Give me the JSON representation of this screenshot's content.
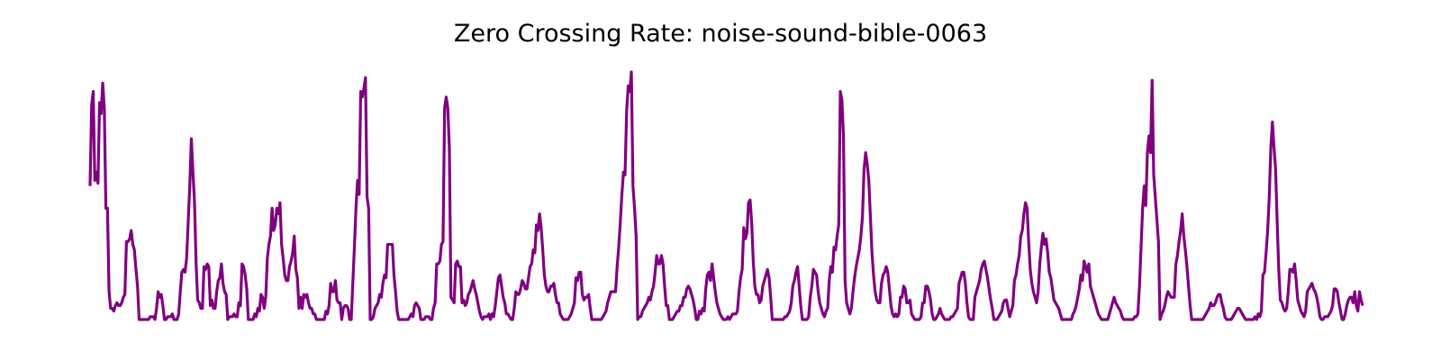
{
  "chart_data": {
    "type": "line",
    "title": "Zero Crossing Rate: noise-sound-bible-0063",
    "xlabel": "",
    "ylabel": "",
    "axes_visible": false,
    "grid": false,
    "line_color": "#800080",
    "values": [
      0.48,
      0.77,
      0.82,
      0.5,
      0.53,
      0.49,
      0.78,
      0.74,
      0.85,
      0.76,
      0.4,
      0.4,
      0.1,
      0.04,
      0.04,
      0.03,
      0.05,
      0.06,
      0.05,
      0.05,
      0.06,
      0.08,
      0.09,
      0.28,
      0.28,
      0.29,
      0.32,
      0.27,
      0.25,
      0.18,
      0.12,
      0.0,
      0.0,
      0.0,
      0.0,
      0.0,
      0.0,
      0.0,
      0.01,
      0.01,
      0.01,
      0.0,
      0.04,
      0.1,
      0.08,
      0.09,
      0.05,
      0.0,
      0.0,
      0.01,
      0.01,
      0.01,
      0.02,
      0.0,
      0.0,
      0.0,
      0.02,
      0.1,
      0.17,
      0.18,
      0.17,
      0.22,
      0.35,
      0.48,
      0.65,
      0.53,
      0.42,
      0.2,
      0.07,
      0.06,
      0.04,
      0.04,
      0.19,
      0.18,
      0.2,
      0.19,
      0.05,
      0.07,
      0.04,
      0.04,
      0.1,
      0.14,
      0.15,
      0.2,
      0.13,
      0.1,
      0.09,
      0.0,
      0.01,
      0.01,
      0.01,
      0.02,
      0.01,
      0.01,
      0.06,
      0.05,
      0.2,
      0.19,
      0.16,
      0.11,
      0.0,
      0.0,
      0.0,
      0.0,
      0.02,
      0.01,
      0.04,
      0.03,
      0.09,
      0.08,
      0.04,
      0.08,
      0.22,
      0.27,
      0.3,
      0.4,
      0.32,
      0.34,
      0.4,
      0.38,
      0.42,
      0.27,
      0.22,
      0.16,
      0.14,
      0.14,
      0.19,
      0.21,
      0.24,
      0.3,
      0.18,
      0.15,
      0.04,
      0.08,
      0.04,
      0.09,
      0.08,
      0.09,
      0.06,
      0.04,
      0.04,
      0.02,
      0.02,
      0.0,
      0.0,
      0.0,
      0.0,
      0.0,
      0.0,
      0.03,
      0.02,
      0.05,
      0.13,
      0.1,
      0.1,
      0.14,
      0.07,
      0.06,
      0.06,
      0.0,
      0.04,
      0.05,
      0.05,
      0.04,
      0.0,
      0.0,
      0.13,
      0.26,
      0.4,
      0.5,
      0.45,
      0.82,
      0.8,
      0.83,
      0.87,
      0.44,
      0.4,
      0.0,
      0.0,
      0.01,
      0.04,
      0.05,
      0.06,
      0.09,
      0.08,
      0.13,
      0.16,
      0.15,
      0.27,
      0.27,
      0.27,
      0.27,
      0.16,
      0.1,
      0.03,
      0.0,
      0.0,
      0.0,
      0.0,
      0.0,
      0.0,
      0.0,
      0.01,
      0.02,
      0.01,
      0.05,
      0.06,
      0.05,
      0.04,
      0.0,
      0.0,
      0.0,
      0.01,
      0.01,
      0.01,
      0.0,
      0.0,
      0.04,
      0.06,
      0.2,
      0.2,
      0.21,
      0.27,
      0.28,
      0.76,
      0.8,
      0.76,
      0.62,
      0.08,
      0.07,
      0.06,
      0.2,
      0.21,
      0.19,
      0.19,
      0.06,
      0.07,
      0.05,
      0.06,
      0.09,
      0.1,
      0.12,
      0.14,
      0.11,
      0.09,
      0.06,
      0.03,
      0.01,
      0.0,
      0.01,
      0.01,
      0.01,
      0.02,
      0.0,
      0.02,
      0.01,
      0.05,
      0.1,
      0.15,
      0.16,
      0.12,
      0.08,
      0.06,
      0.02,
      0.02,
      0.01,
      0.0,
      0.0,
      0.04,
      0.1,
      0.09,
      0.09,
      0.11,
      0.14,
      0.13,
      0.11,
      0.11,
      0.15,
      0.19,
      0.2,
      0.25,
      0.24,
      0.34,
      0.32,
      0.38,
      0.33,
      0.25,
      0.16,
      0.12,
      0.1,
      0.1,
      0.12,
      0.12,
      0.13,
      0.09,
      0.06,
      0.06,
      0.02,
      0.01,
      0.0,
      0.0,
      0.0,
      0.0,
      0.01,
      0.02,
      0.04,
      0.06,
      0.15,
      0.14,
      0.17,
      0.17,
      0.09,
      0.07,
      0.08,
      0.08,
      0.09,
      0.04,
      0.0,
      0.0,
      0.0,
      0.0,
      0.0,
      0.0,
      0.0,
      0.01,
      0.02,
      0.03,
      0.06,
      0.08,
      0.1,
      0.1,
      0.1,
      0.1,
      0.19,
      0.26,
      0.35,
      0.45,
      0.53,
      0.52,
      0.75,
      0.84,
      0.82,
      0.89,
      0.48,
      0.4,
      0.3,
      0.0,
      0.01,
      0.01,
      0.03,
      0.04,
      0.05,
      0.06,
      0.08,
      0.07,
      0.1,
      0.12,
      0.17,
      0.23,
      0.2,
      0.2,
      0.23,
      0.2,
      0.12,
      0.05,
      0.05,
      0.0,
      0.0,
      0.0,
      0.01,
      0.02,
      0.03,
      0.03,
      0.05,
      0.05,
      0.08,
      0.08,
      0.11,
      0.12,
      0.11,
      0.09,
      0.07,
      0.04,
      0.0,
      0.0,
      0.03,
      0.02,
      0.04,
      0.03,
      0.11,
      0.16,
      0.17,
      0.14,
      0.2,
      0.15,
      0.1,
      0.06,
      0.04,
      0.02,
      0.01,
      0.0,
      0.0,
      0.0,
      0.01,
      0.0,
      0.01,
      0.02,
      0.02,
      0.02,
      0.03,
      0.1,
      0.15,
      0.18,
      0.33,
      0.29,
      0.31,
      0.42,
      0.43,
      0.35,
      0.21,
      0.12,
      0.09,
      0.09,
      0.06,
      0.07,
      0.12,
      0.14,
      0.16,
      0.18,
      0.15,
      0.08,
      0.0,
      0.0,
      0.0,
      0.0,
      0.0,
      0.0,
      0.0,
      0.0,
      0.01,
      0.01,
      0.02,
      0.03,
      0.06,
      0.12,
      0.14,
      0.17,
      0.19,
      0.12,
      0.05,
      0.0,
      0.0,
      0.0,
      0.0,
      0.01,
      0.08,
      0.12,
      0.18,
      0.17,
      0.16,
      0.1,
      0.06,
      0.04,
      0.02,
      0.01,
      0.03,
      0.04,
      0.14,
      0.19,
      0.17,
      0.26,
      0.25,
      0.3,
      0.34,
      0.82,
      0.79,
      0.66,
      0.14,
      0.06,
      0.04,
      0.02,
      0.04,
      0.1,
      0.15,
      0.19,
      0.22,
      0.25,
      0.3,
      0.37,
      0.54,
      0.6,
      0.56,
      0.5,
      0.37,
      0.24,
      0.16,
      0.1,
      0.07,
      0.06,
      0.06,
      0.13,
      0.16,
      0.17,
      0.19,
      0.17,
      0.11,
      0.05,
      0.02,
      0.01,
      0.02,
      0.01,
      0.02,
      0.08,
      0.08,
      0.12,
      0.11,
      0.06,
      0.06,
      0.07,
      0.02,
      0.01,
      0.0,
      0.0,
      0.0,
      0.0,
      0.01,
      0.06,
      0.06,
      0.12,
      0.12,
      0.1,
      0.07,
      0.02,
      0.0,
      0.0,
      0.01,
      0.02,
      0.04,
      0.02,
      0.01,
      0.0,
      0.0,
      0.0,
      0.0,
      0.01,
      0.01,
      0.02,
      0.03,
      0.04,
      0.13,
      0.15,
      0.17,
      0.17,
      0.13,
      0.06,
      0.01,
      0.0,
      0.0,
      0.0,
      0.08,
      0.1,
      0.12,
      0.14,
      0.18,
      0.2,
      0.21,
      0.18,
      0.15,
      0.11,
      0.07,
      0.04,
      0.0,
      0.0,
      0.0,
      0.01,
      0.02,
      0.03,
      0.06,
      0.07,
      0.07,
      0.04,
      0.01,
      0.03,
      0.05,
      0.14,
      0.16,
      0.2,
      0.23,
      0.3,
      0.32,
      0.38,
      0.42,
      0.4,
      0.28,
      0.18,
      0.13,
      0.1,
      0.08,
      0.06,
      0.1,
      0.2,
      0.26,
      0.31,
      0.27,
      0.29,
      0.24,
      0.17,
      0.15,
      0.11,
      0.07,
      0.06,
      0.05,
      0.04,
      0.02,
      0.0,
      0.0,
      0.0,
      0.0,
      0.0,
      0.0,
      0.0,
      0.02,
      0.03,
      0.05,
      0.08,
      0.11,
      0.16,
      0.14,
      0.21,
      0.19,
      0.17,
      0.2,
      0.12,
      0.1,
      0.08,
      0.06,
      0.04,
      0.02,
      0.01,
      0.0,
      0.0,
      0.0,
      0.0,
      0.0,
      0.02,
      0.04,
      0.06,
      0.08,
      0.06,
      0.05,
      0.04,
      0.03,
      0.01,
      0.0,
      0.0,
      0.0,
      0.0,
      0.0,
      0.0,
      0.0,
      0.01,
      0.01,
      0.02,
      0.12,
      0.26,
      0.4,
      0.48,
      0.41,
      0.6,
      0.66,
      0.6,
      0.86,
      0.52,
      0.44,
      0.36,
      0.28,
      0.0,
      0.02,
      0.03,
      0.05,
      0.08,
      0.1,
      0.09,
      0.08,
      0.08,
      0.08,
      0.2,
      0.23,
      0.28,
      0.32,
      0.38,
      0.3,
      0.25,
      0.19,
      0.12,
      0.05,
      0.0,
      0.0,
      0.0,
      0.0,
      0.0,
      0.0,
      0.0,
      0.0,
      0.01,
      0.02,
      0.03,
      0.04,
      0.06,
      0.05,
      0.05,
      0.06,
      0.08,
      0.09,
      0.09,
      0.06,
      0.04,
      0.01,
      0.0,
      0.0,
      0.0,
      0.0,
      0.01,
      0.02,
      0.03,
      0.04,
      0.04,
      0.03,
      0.02,
      0.01,
      0.0,
      0.0,
      0.0,
      0.0,
      0.0,
      0.0,
      0.01,
      0.0,
      0.02,
      0.01,
      0.03,
      0.16,
      0.17,
      0.24,
      0.32,
      0.44,
      0.62,
      0.71,
      0.62,
      0.54,
      0.35,
      0.18,
      0.07,
      0.06,
      0.04,
      0.03,
      0.04,
      0.1,
      0.18,
      0.18,
      0.17,
      0.2,
      0.14,
      0.07,
      0.05,
      0.03,
      0.02,
      0.01,
      0.03,
      0.1,
      0.11,
      0.12,
      0.13,
      0.11,
      0.1,
      0.08,
      0.05,
      0.01,
      0.0,
      0.0,
      0.01,
      0.01,
      0.01,
      0.02,
      0.03,
      0.05,
      0.11,
      0.11,
      0.1,
      0.06,
      0.03,
      0.0,
      0.0,
      0.02,
      0.05,
      0.07,
      0.08,
      0.08,
      0.06,
      0.1,
      0.05,
      0.03,
      0.1,
      0.07,
      0.05
    ]
  }
}
